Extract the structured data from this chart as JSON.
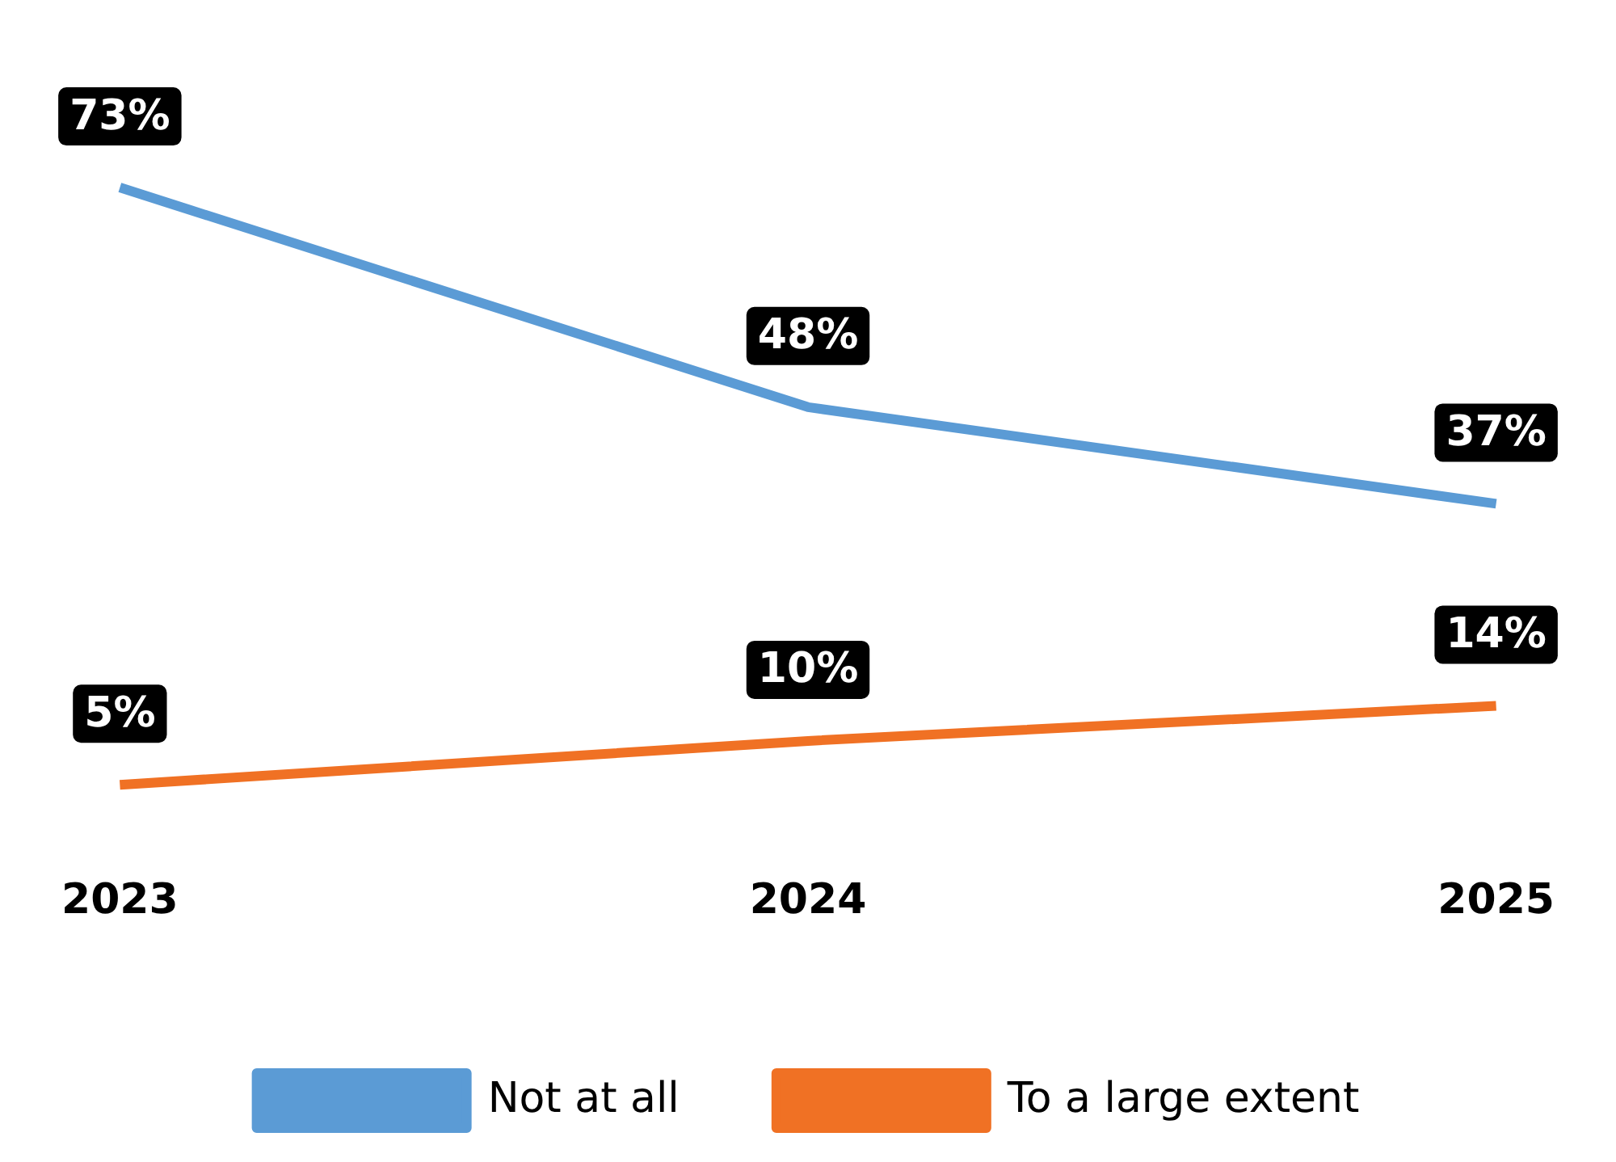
{
  "chart_data": {
    "type": "line",
    "categories": [
      "2023",
      "2024",
      "2025"
    ],
    "series": [
      {
        "name": "Not at all",
        "color": "#5b9bd5",
        "values": [
          73,
          48,
          37
        ],
        "value_labels": [
          "73%",
          "48%",
          "37%"
        ]
      },
      {
        "name": "To a large extent",
        "color": "#f07124",
        "values": [
          5,
          10,
          14
        ],
        "value_labels": [
          "5%",
          "10%",
          "14%"
        ]
      }
    ],
    "legend": "bottom",
    "grid": false,
    "marker": "none",
    "line_style": "solid"
  }
}
